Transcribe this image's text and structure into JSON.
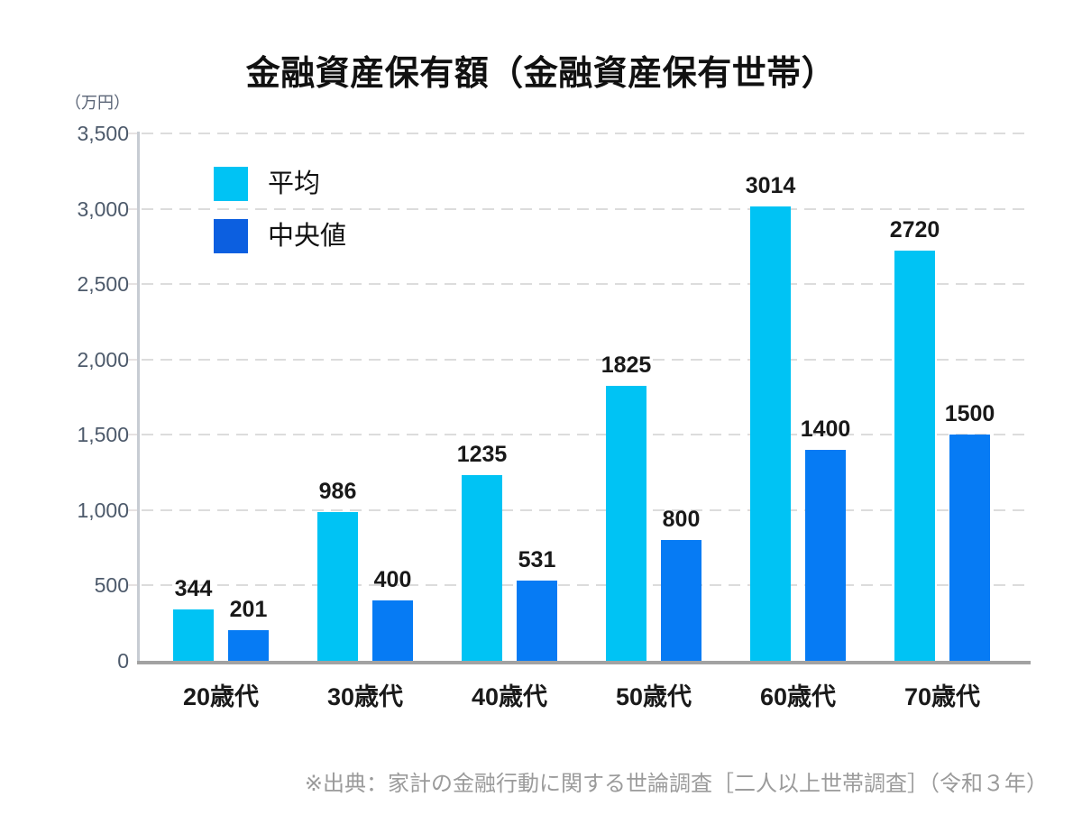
{
  "title": "金融資産保有額（金融資産保有世帯）",
  "unit_label": "（万円）",
  "legend": [
    {
      "label": "平均",
      "color": "#00C3F4"
    },
    {
      "label": "中央値",
      "color": "#0C5FE0"
    }
  ],
  "source_note": "※出典：家計の金融行動に関する世論調査［二人以上世帯調査］（令和３年）",
  "colors": {
    "average_bar": "#00C3F4",
    "median_bar": "#067BF4",
    "median_legend": "#0C5FE0",
    "gridline": "#DCDCDC",
    "baseline": "#A2A2A2",
    "y_axis_line": "#C7CCD3"
  },
  "chart_data": {
    "type": "bar",
    "title": "金融資産保有額（金融資産保有世帯）",
    "categories": [
      "20歳代",
      "30歳代",
      "40歳代",
      "50歳代",
      "60歳代",
      "70歳代"
    ],
    "series": [
      {
        "name": "平均",
        "color": "#00C3F4",
        "values": [
          344,
          986,
          1235,
          1825,
          3014,
          2720
        ]
      },
      {
        "name": "中央値",
        "color": "#067BF4",
        "legend_color": "#0C5FE0",
        "values": [
          201,
          400,
          531,
          800,
          1400,
          1500
        ]
      }
    ],
    "xlabel": "",
    "ylabel": "（万円）",
    "ylim": [
      0,
      3500
    ],
    "ytick_interval": 500,
    "yticks": [
      "0",
      "500",
      "1,000",
      "1,500",
      "2,000",
      "2,500",
      "3,000",
      "3,500"
    ],
    "grid": "dashed-horizontal",
    "legend_position": "top-left-inside",
    "value_labels": "above-bars"
  }
}
